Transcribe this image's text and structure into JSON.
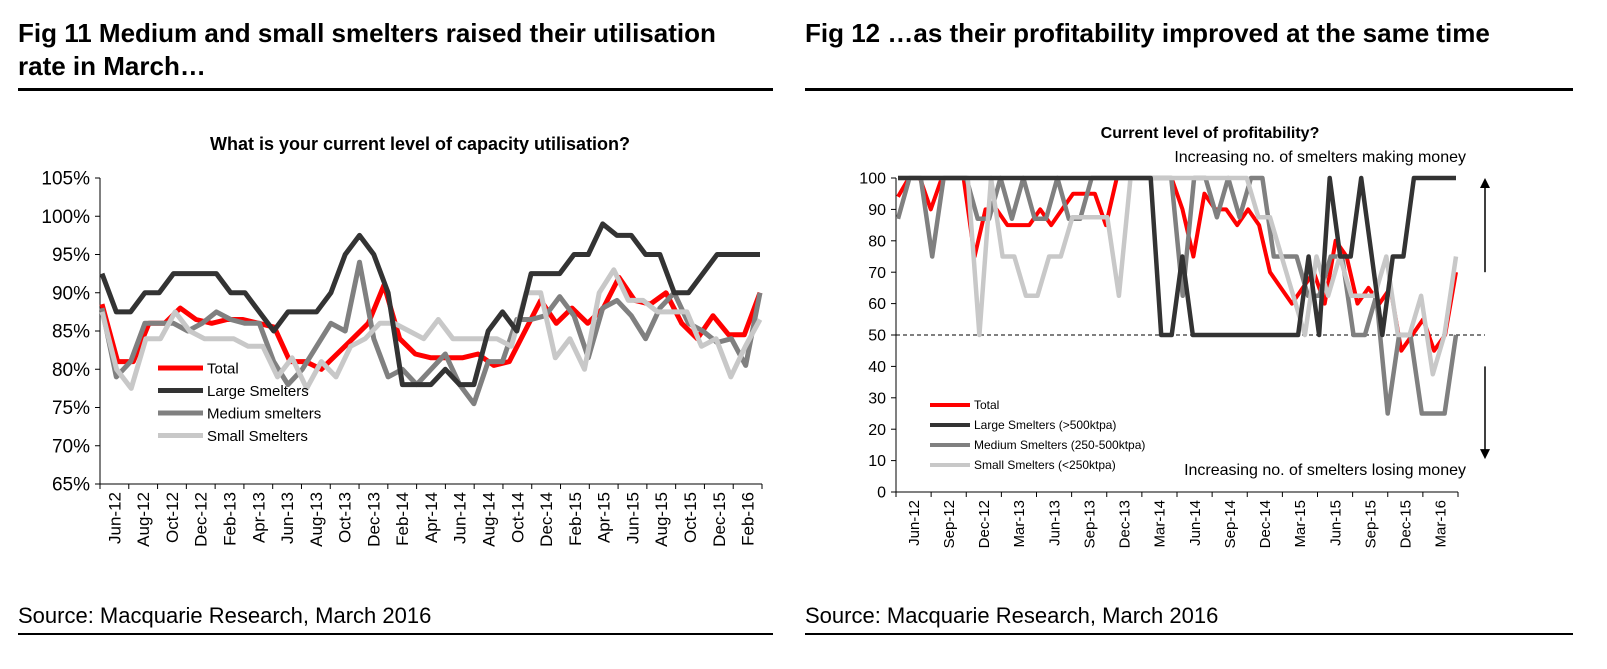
{
  "left": {
    "fig_title": "Fig 11  Medium and small smelters raised their utilisation rate in March…",
    "source": "Source: Macquarie Research, March 2016"
  },
  "right": {
    "fig_title": "Fig 12  …as their profitability improved at the same time",
    "source": "Source: Macquarie Research, March 2016"
  },
  "colors": {
    "total": "#ff0000",
    "large": "#333333",
    "medium": "#808080",
    "small": "#c8c8c8"
  },
  "chart_data": [
    {
      "type": "line",
      "title": "What is your current level of capacity utilisation?",
      "ylim": [
        65,
        105
      ],
      "yticks": [
        "65%",
        "70%",
        "75%",
        "80%",
        "85%",
        "90%",
        "95%",
        "100%",
        "105%"
      ],
      "x_tick_labels": [
        "Jun-12",
        "Aug-12",
        "Oct-12",
        "Dec-12",
        "Feb-13",
        "Apr-13",
        "Jun-13",
        "Aug-13",
        "Oct-13",
        "Dec-13",
        "Feb-14",
        "Apr-14",
        "Jun-14",
        "Aug-14",
        "Oct-14",
        "Dec-14",
        "Feb-15",
        "Apr-15",
        "Jun-15",
        "Aug-15",
        "Oct-15",
        "Dec-15",
        "Feb-16"
      ],
      "series": [
        {
          "name": "Total",
          "key": "total",
          "values": [
            88.5,
            81,
            81,
            86,
            86,
            88,
            86.5,
            86,
            86.5,
            86.5,
            86,
            85.5,
            81,
            81,
            80,
            82,
            84,
            86,
            91,
            84,
            82,
            81.5,
            81.5,
            81.5,
            82,
            80.5,
            81,
            85,
            89,
            86,
            88,
            86,
            88,
            92,
            89,
            88.5,
            90,
            86,
            84,
            87,
            84.5,
            84.5,
            90
          ]
        },
        {
          "name": "Large Smelters",
          "key": "large",
          "values": [
            92.5,
            87.5,
            87.5,
            90,
            90,
            92.5,
            92.5,
            92.5,
            92.5,
            90,
            90,
            87.5,
            85,
            87.5,
            87.5,
            87.5,
            90,
            95,
            97.5,
            95,
            90,
            78,
            78,
            78,
            80,
            78,
            78,
            85,
            87.5,
            85,
            92.5,
            92.5,
            92.5,
            95,
            95,
            99,
            97.5,
            97.5,
            95,
            95,
            90,
            90,
            92.5,
            95,
            95,
            95,
            95
          ]
        },
        {
          "name": "Medium smelters",
          "key": "medium",
          "values": [
            88,
            79,
            81,
            86,
            86,
            86,
            85,
            86,
            87.5,
            86.5,
            86,
            86,
            81,
            78,
            80,
            83,
            86,
            85,
            94,
            84,
            79,
            80,
            78,
            80,
            82,
            78,
            75.5,
            81,
            81,
            86.5,
            86.5,
            87,
            89.5,
            87,
            81.5,
            88,
            89,
            87,
            84,
            88,
            90,
            86,
            85,
            83.5,
            84,
            80.5,
            90
          ]
        },
        {
          "name": "Small Smelters",
          "key": "small",
          "values": [
            87.5,
            80,
            77.5,
            84,
            84,
            87.5,
            85,
            84,
            84,
            84,
            83,
            83,
            79,
            81.5,
            77.5,
            81,
            79,
            83,
            84,
            86,
            86,
            85,
            84,
            86.5,
            84,
            84,
            84,
            84,
            83,
            90,
            90,
            81.5,
            84,
            80,
            90,
            93,
            89,
            89,
            87.5,
            87.5,
            87.5,
            83,
            84,
            79,
            83,
            86.5
          ]
        }
      ]
    },
    {
      "type": "line",
      "title": "Current level of profitability?",
      "ylim": [
        0,
        100
      ],
      "yticks": [
        "0",
        "10",
        "20",
        "30",
        "40",
        "50",
        "60",
        "70",
        "80",
        "90",
        "100"
      ],
      "x_tick_labels": [
        "Jun-12",
        "Sep-12",
        "Dec-12",
        "Mar-13",
        "Jun-13",
        "Sep-13",
        "Dec-13",
        "Mar-14",
        "Jun-14",
        "Sep-14",
        "Dec-14",
        "Mar-15",
        "Jun-15",
        "Sep-15",
        "Dec-15",
        "Mar-16"
      ],
      "reference_line": 50,
      "annotation_top": "Increasing no. of smelters making money",
      "annotation_bottom": "Increasing no. of smelters losing money",
      "series": [
        {
          "name": "Total",
          "key": "total",
          "values": [
            94,
            100,
            100,
            90,
            100,
            100,
            100,
            75,
            90,
            90,
            85,
            85,
            85,
            90,
            85,
            90,
            95,
            95,
            95,
            85,
            100,
            100,
            100,
            100,
            100,
            100,
            90,
            75,
            95,
            90,
            90,
            85,
            90,
            85,
            70,
            65,
            60,
            65,
            70,
            60,
            80,
            75,
            60,
            65,
            60,
            65,
            45,
            50,
            55,
            45,
            50,
            70
          ]
        },
        {
          "name": "Large Smelters (>500ktpa)",
          "key": "large",
          "values": [
            100,
            100,
            100,
            100,
            100,
            100,
            100,
            100,
            100,
            100,
            100,
            100,
            100,
            100,
            100,
            100,
            100,
            100,
            100,
            100,
            100,
            100,
            100,
            100,
            100,
            50,
            50,
            75,
            50,
            50,
            50,
            50,
            50,
            50,
            50,
            50,
            50,
            50,
            50,
            75,
            50,
            100,
            75,
            75,
            100,
            75,
            50,
            75,
            75,
            100,
            100,
            100,
            100,
            100
          ]
        },
        {
          "name": "Medium Smelters (250-500ktpa)",
          "key": "medium",
          "values": [
            87,
            100,
            100,
            75,
            100,
            100,
            100,
            87,
            87,
            100,
            87,
            100,
            87,
            87,
            100,
            87,
            87,
            100,
            100,
            100,
            100,
            100,
            100,
            100,
            100,
            62.5,
            100,
            100,
            87.5,
            100,
            87.5,
            100,
            100,
            75,
            75,
            75,
            62.5,
            62.5,
            75,
            75,
            50,
            50,
            62.5,
            25,
            50,
            50,
            25,
            25,
            25,
            50
          ]
        },
        {
          "name": "Small Smelters (<250ktpa)",
          "key": "small",
          "values": [
            100,
            100,
            100,
            100,
            100,
            100,
            100,
            50,
            100,
            75,
            75,
            62.5,
            62.5,
            75,
            75,
            87.5,
            87.5,
            87.5,
            87.5,
            62.5,
            100,
            100,
            100,
            100,
            100,
            100,
            100,
            100,
            100,
            100,
            100,
            87.5,
            87.5,
            75,
            62.5,
            50,
            75,
            62.5,
            75,
            62.5,
            62.5,
            62.5,
            75,
            50,
            50,
            62.5,
            37.5,
            50,
            75
          ]
        }
      ]
    }
  ]
}
